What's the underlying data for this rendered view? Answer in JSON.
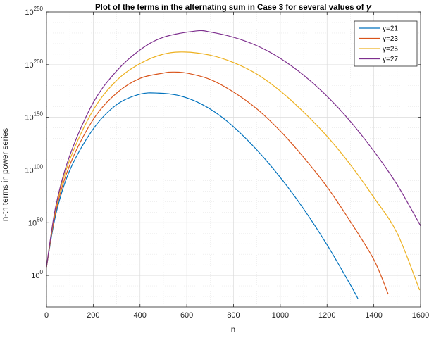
{
  "chart_data": {
    "type": "line",
    "title": "Plot of the terms in the alternating sum in Case 3 for several values of ",
    "title_symbol": "γ",
    "xlabel": "n",
    "ylabel": "n-th terms in power series",
    "xlim": [
      0,
      1600
    ],
    "ylim_log10": [
      -30,
      250
    ],
    "y_scale": "log",
    "grid": true,
    "minor_grid": true,
    "legend_position": "top-right",
    "x_ticks": [
      0,
      200,
      400,
      600,
      800,
      1000,
      1200,
      1400,
      1600
    ],
    "x_tick_labels": [
      "0",
      "200",
      "400",
      "600",
      "800",
      "1000",
      "1200",
      "1400",
      "1600"
    ],
    "y_ticks_log10": [
      0,
      50,
      100,
      150,
      200,
      250
    ],
    "y_tick_base": "10",
    "y_tick_exponents": [
      "0",
      "50",
      "100",
      "150",
      "200",
      "250"
    ],
    "series": [
      {
        "name": "γ=21",
        "color": "#0072BD",
        "x": [
          0,
          40,
          100,
          200,
          300,
          400,
          480,
          560,
          640,
          720,
          800,
          900,
          1000,
          1100,
          1200,
          1300,
          1332
        ],
        "log10_y": [
          8,
          58,
          100,
          139,
          162,
          172,
          173,
          171,
          165,
          155,
          141,
          119,
          93,
          63,
          29,
          -9,
          -22
        ]
      },
      {
        "name": "γ=23",
        "color": "#D95319",
        "x": [
          0,
          40,
          100,
          200,
          300,
          400,
          500,
          540,
          600,
          700,
          800,
          900,
          1000,
          1100,
          1200,
          1300,
          1400,
          1462
        ],
        "log10_y": [
          8,
          61,
          105,
          148,
          173,
          187,
          192,
          193,
          192,
          186,
          174,
          158,
          137,
          112,
          84,
          51,
          15,
          -18
        ]
      },
      {
        "name": "γ=25",
        "color": "#EDB120",
        "x": [
          0,
          40,
          100,
          200,
          300,
          400,
          500,
          590,
          700,
          800,
          900,
          1000,
          1100,
          1200,
          1300,
          1400,
          1500,
          1596
        ],
        "log10_y": [
          8,
          64,
          110,
          157,
          185,
          201,
          210,
          212,
          209,
          202,
          191,
          175,
          155,
          132,
          105,
          74,
          40,
          -14
        ]
      },
      {
        "name": "γ=27",
        "color": "#7E2F8E",
        "x": [
          0,
          40,
          100,
          200,
          300,
          400,
          500,
          640,
          700,
          800,
          900,
          1000,
          1100,
          1200,
          1300,
          1400,
          1500,
          1600
        ],
        "log10_y": [
          8,
          66,
          114,
          164,
          194,
          214,
          226,
          232,
          231,
          226,
          218,
          206,
          190,
          170,
          146,
          118,
          86,
          47
        ]
      }
    ]
  }
}
